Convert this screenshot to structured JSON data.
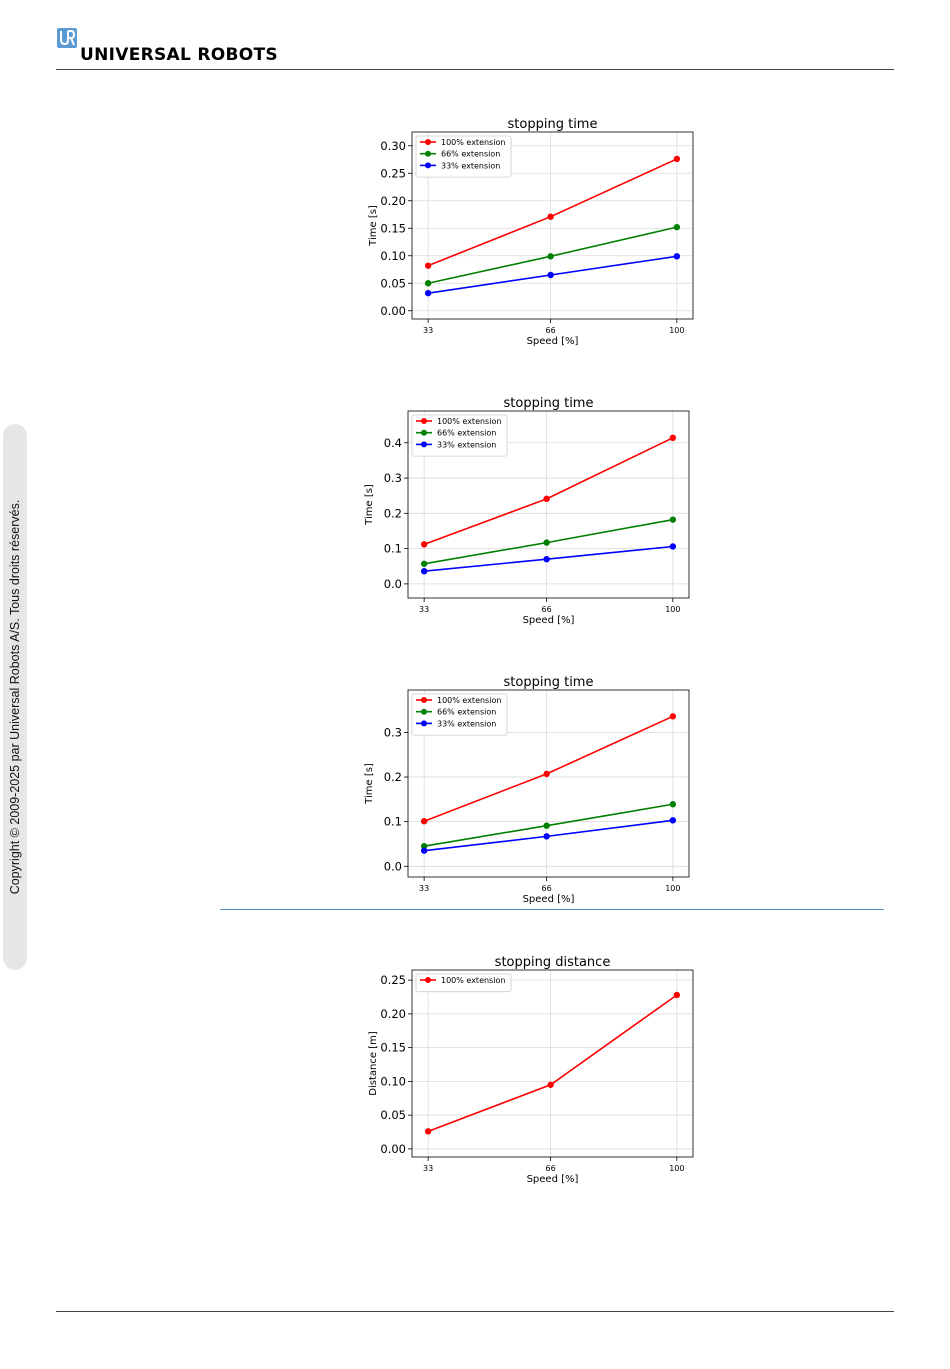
{
  "brand": {
    "logo_text": "UNIVERSAL ROBOTS",
    "logo_color": "#5b9bd5"
  },
  "sidebar": {
    "copyright": "Copyright © 2009-2025 par Universal Robots A/S. Tous droits réservés."
  },
  "chart_data": [
    {
      "type": "line",
      "title": "stopping time",
      "xlabel": "Speed [%]",
      "ylabel": "Time [s]",
      "categories": [
        "33",
        "66",
        "100"
      ],
      "x": [
        33,
        66,
        100
      ],
      "ylim": [
        -0.015,
        0.325
      ],
      "yticks": [
        0.0,
        0.05,
        0.1,
        0.15,
        0.2,
        0.25,
        0.3
      ],
      "ytick_labels": [
        "0.00",
        "0.05",
        "0.10",
        "0.15",
        "0.20",
        "0.25",
        "0.30"
      ],
      "grid": true,
      "legend_position": "top-left",
      "series": [
        {
          "name": "100% extension",
          "color": "#ff0000",
          "values": [
            0.082,
            0.171,
            0.276
          ]
        },
        {
          "name": "66% extension",
          "color": "#008000",
          "values": [
            0.05,
            0.099,
            0.152
          ]
        },
        {
          "name": "33% extension",
          "color": "#0000ff",
          "values": [
            0.032,
            0.065,
            0.099
          ]
        }
      ]
    },
    {
      "type": "line",
      "title": "stopping time",
      "xlabel": "Speed [%]",
      "ylabel": "Time [s]",
      "categories": [
        "33",
        "66",
        "100"
      ],
      "x": [
        33,
        66,
        100
      ],
      "ylim": [
        -0.04,
        0.49
      ],
      "yticks": [
        0.0,
        0.1,
        0.2,
        0.3,
        0.4
      ],
      "ytick_labels": [
        "0.0",
        "0.1",
        "0.2",
        "0.3",
        "0.4"
      ],
      "grid": true,
      "legend_position": "top-left",
      "series": [
        {
          "name": "100% extension",
          "color": "#ff0000",
          "values": [
            0.112,
            0.241,
            0.414
          ]
        },
        {
          "name": "66% extension",
          "color": "#008000",
          "values": [
            0.057,
            0.117,
            0.182
          ]
        },
        {
          "name": "33% extension",
          "color": "#0000ff",
          "values": [
            0.036,
            0.07,
            0.106
          ]
        }
      ]
    },
    {
      "type": "line",
      "title": "stopping time",
      "xlabel": "Speed [%]",
      "ylabel": "Time [s]",
      "categories": [
        "33",
        "66",
        "100"
      ],
      "x": [
        33,
        66,
        100
      ],
      "ylim": [
        -0.024,
        0.395
      ],
      "yticks": [
        0.0,
        0.1,
        0.2,
        0.3
      ],
      "ytick_labels": [
        "0.0",
        "0.1",
        "0.2",
        "0.3"
      ],
      "grid": true,
      "legend_position": "top-left",
      "series": [
        {
          "name": "100% extension",
          "color": "#ff0000",
          "values": [
            0.101,
            0.207,
            0.336
          ]
        },
        {
          "name": "66% extension",
          "color": "#008000",
          "values": [
            0.045,
            0.091,
            0.139
          ]
        },
        {
          "name": "33% extension",
          "color": "#0000ff",
          "values": [
            0.035,
            0.067,
            0.103
          ]
        }
      ]
    },
    {
      "type": "line",
      "title": "stopping distance",
      "xlabel": "Speed [%]",
      "ylabel": "Distance [m]",
      "categories": [
        "33",
        "66",
        "100"
      ],
      "x": [
        33,
        66,
        100
      ],
      "ylim": [
        -0.012,
        0.265
      ],
      "yticks": [
        0.0,
        0.05,
        0.1,
        0.15,
        0.2,
        0.25
      ],
      "ytick_labels": [
        "0.00",
        "0.05",
        "0.10",
        "0.15",
        "0.20",
        "0.25"
      ],
      "grid": true,
      "legend_position": "top-left",
      "series": [
        {
          "name": "100% extension",
          "color": "#ff0000",
          "values": [
            0.026,
            0.095,
            0.228
          ]
        }
      ]
    }
  ]
}
